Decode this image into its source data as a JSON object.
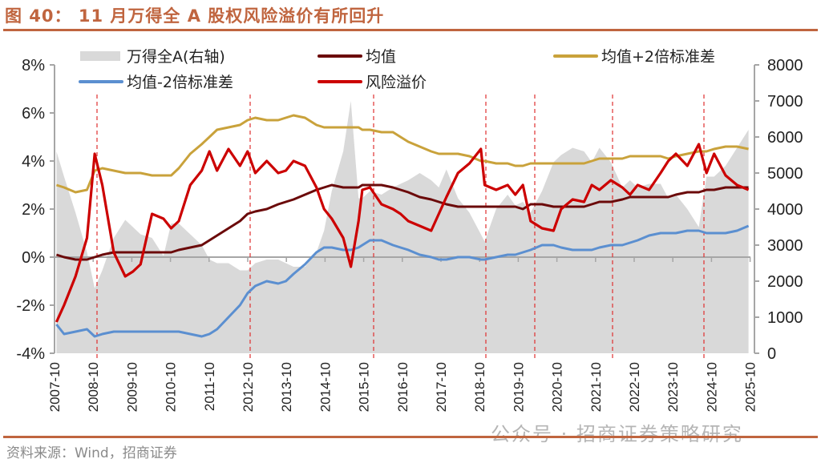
{
  "header": {
    "title": "图 40： 11 月万得全 A 股权风险溢价有所回升"
  },
  "footer": {
    "source": "资料来源：Wind，招商证券",
    "watermark": "公众号 · 招商证券策略研究"
  },
  "colors": {
    "title": "#c0653f",
    "index_area": "#d9d9d9",
    "mean": "#6b0a0a",
    "upper": "#c9a23b",
    "lower": "#5b8fd0",
    "erp": "#cc0000",
    "event_lines": "#e03030",
    "axis": "#a6a6a6"
  },
  "chart_data": {
    "type": "line",
    "title": "11月万得全A股权风险溢价有所回升",
    "xlabel": "",
    "ylabel": "",
    "ylim": [
      -0.04,
      0.08
    ],
    "y2lim": [
      0,
      8000
    ],
    "y_ticks": [
      "8%",
      "6%",
      "4%",
      "2%",
      "0%",
      "-2%",
      "-4%"
    ],
    "y2_ticks": [
      "8000",
      "7000",
      "6000",
      "5000",
      "4000",
      "3000",
      "2000",
      "1000",
      "0"
    ],
    "x_ticks": [
      "2007-10",
      "2008-10",
      "2009-10",
      "2010-10",
      "2011-10",
      "2012-10",
      "2013-10",
      "2014-10",
      "2015-10",
      "2016-10",
      "2017-10",
      "2018-10",
      "2019-10",
      "2020-10",
      "2021-10",
      "2022-10",
      "2023-10",
      "2024-10",
      "2025-10"
    ],
    "legend": [
      {
        "name": "万得全A(右轴)",
        "kind": "area"
      },
      {
        "name": "均值",
        "kind": "line"
      },
      {
        "name": "均值+2倍标准差",
        "kind": "line"
      },
      {
        "name": "均值-2倍标准差",
        "kind": "line"
      },
      {
        "name": "风险溢价",
        "kind": "line"
      }
    ],
    "legend_position": "top",
    "grid": false,
    "event_lines": [
      "2008-11",
      "2012-11",
      "2016-01",
      "2018-12",
      "2020-03",
      "2022-04",
      "2024-09"
    ],
    "x": [
      2007.8,
      2008.0,
      2008.3,
      2008.6,
      2008.8,
      2009.0,
      2009.3,
      2009.6,
      2009.8,
      2010.0,
      2010.3,
      2010.6,
      2010.8,
      2011.0,
      2011.3,
      2011.6,
      2011.8,
      2012.0,
      2012.3,
      2012.6,
      2012.8,
      2013.0,
      2013.3,
      2013.6,
      2013.8,
      2014.0,
      2014.3,
      2014.6,
      2014.8,
      2015.0,
      2015.3,
      2015.5,
      2015.7,
      2015.8,
      2016.0,
      2016.3,
      2016.6,
      2016.8,
      2017.0,
      2017.3,
      2017.6,
      2017.8,
      2018.0,
      2018.3,
      2018.6,
      2018.9,
      2019.0,
      2019.3,
      2019.6,
      2019.8,
      2020.0,
      2020.2,
      2020.5,
      2020.8,
      2021.0,
      2021.3,
      2021.6,
      2021.8,
      2022.0,
      2022.3,
      2022.6,
      2022.8,
      2023.0,
      2023.3,
      2023.6,
      2023.8,
      2024.0,
      2024.3,
      2024.6,
      2024.8,
      2025.0,
      2025.3,
      2025.6,
      2025.9
    ],
    "series": [
      {
        "name": "风险溢价",
        "axis": "left",
        "values": [
          -2.7,
          -2.0,
          -0.8,
          0.8,
          4.3,
          3.0,
          0.2,
          -0.8,
          -0.6,
          -0.3,
          1.8,
          1.6,
          1.2,
          1.5,
          3.0,
          3.6,
          4.4,
          3.6,
          4.5,
          3.8,
          4.4,
          3.5,
          4.0,
          3.5,
          3.6,
          4.0,
          3.8,
          2.9,
          2.0,
          1.6,
          0.8,
          -0.4,
          1.5,
          2.8,
          2.9,
          2.2,
          2.0,
          1.8,
          1.5,
          1.3,
          1.1,
          1.8,
          2.5,
          3.5,
          3.9,
          4.5,
          3.0,
          2.8,
          3.0,
          2.6,
          3.0,
          1.5,
          1.2,
          1.1,
          2.0,
          2.4,
          2.3,
          3.0,
          2.8,
          3.2,
          2.9,
          2.6,
          3.0,
          2.8,
          3.5,
          4.0,
          4.3,
          3.8,
          4.7,
          3.5,
          4.3,
          3.4,
          3.0,
          2.8
        ]
      },
      {
        "name": "均值",
        "axis": "left",
        "values": [
          0.1,
          0.0,
          -0.1,
          -0.1,
          0.0,
          0.1,
          0.2,
          0.2,
          0.2,
          0.2,
          0.2,
          0.2,
          0.2,
          0.3,
          0.4,
          0.5,
          0.7,
          0.9,
          1.2,
          1.5,
          1.8,
          1.9,
          2.0,
          2.2,
          2.3,
          2.4,
          2.6,
          2.8,
          2.9,
          3.0,
          2.9,
          2.9,
          2.9,
          3.0,
          3.0,
          3.0,
          2.9,
          2.8,
          2.7,
          2.5,
          2.4,
          2.3,
          2.2,
          2.1,
          2.1,
          2.1,
          2.1,
          2.1,
          2.1,
          2.1,
          2.0,
          2.2,
          2.2,
          2.1,
          2.1,
          2.1,
          2.1,
          2.2,
          2.3,
          2.3,
          2.4,
          2.5,
          2.5,
          2.5,
          2.5,
          2.5,
          2.6,
          2.7,
          2.7,
          2.8,
          2.8,
          2.9,
          2.9,
          2.9
        ]
      },
      {
        "name": "均值+2倍标准差",
        "axis": "left",
        "values": [
          3.0,
          2.9,
          2.7,
          2.8,
          3.6,
          3.7,
          3.6,
          3.5,
          3.5,
          3.5,
          3.4,
          3.4,
          3.4,
          3.7,
          4.3,
          4.7,
          5.0,
          5.3,
          5.4,
          5.5,
          5.7,
          5.8,
          5.7,
          5.7,
          5.8,
          5.9,
          5.8,
          5.5,
          5.4,
          5.4,
          5.4,
          5.4,
          5.4,
          5.3,
          5.3,
          5.2,
          5.2,
          5.0,
          4.8,
          4.6,
          4.4,
          4.3,
          4.3,
          4.3,
          4.2,
          4.0,
          4.0,
          3.9,
          3.9,
          3.8,
          3.8,
          3.9,
          3.9,
          3.9,
          3.9,
          3.9,
          3.9,
          4.0,
          4.1,
          4.1,
          4.1,
          4.2,
          4.2,
          4.2,
          4.2,
          4.1,
          4.2,
          4.3,
          4.4,
          4.4,
          4.5,
          4.6,
          4.6,
          4.5
        ]
      },
      {
        "name": "均值-2倍标准差",
        "axis": "left",
        "values": [
          -2.8,
          -3.2,
          -3.1,
          -3.0,
          -3.3,
          -3.2,
          -3.1,
          -3.1,
          -3.1,
          -3.1,
          -3.1,
          -3.1,
          -3.1,
          -3.1,
          -3.2,
          -3.3,
          -3.2,
          -3.0,
          -2.5,
          -2.0,
          -1.5,
          -1.2,
          -1.0,
          -1.1,
          -1.0,
          -0.7,
          -0.3,
          0.2,
          0.4,
          0.4,
          0.3,
          0.3,
          0.4,
          0.5,
          0.7,
          0.7,
          0.5,
          0.4,
          0.3,
          0.1,
          0.0,
          -0.1,
          -0.1,
          0.0,
          0.0,
          -0.1,
          -0.1,
          0.0,
          0.1,
          0.1,
          0.2,
          0.3,
          0.5,
          0.5,
          0.4,
          0.3,
          0.3,
          0.3,
          0.4,
          0.5,
          0.5,
          0.6,
          0.7,
          0.9,
          1.0,
          1.0,
          1.0,
          1.1,
          1.1,
          1.0,
          1.0,
          1.0,
          1.1,
          1.3
        ]
      },
      {
        "name": "万得全A(右轴)",
        "axis": "right",
        "values": [
          5600,
          4900,
          3900,
          2800,
          1800,
          2300,
          3200,
          3700,
          3500,
          3300,
          3200,
          2700,
          3600,
          3600,
          3300,
          3000,
          2600,
          2500,
          2500,
          2300,
          2300,
          2500,
          2600,
          2600,
          2500,
          2400,
          2400,
          2800,
          3400,
          4500,
          5600,
          7000,
          4300,
          4300,
          4500,
          4400,
          4600,
          4700,
          4800,
          5000,
          4800,
          4600,
          5100,
          4300,
          3900,
          3300,
          3100,
          4000,
          4400,
          4100,
          4200,
          3900,
          4500,
          5300,
          5500,
          5700,
          5600,
          5300,
          5700,
          5300,
          4600,
          4800,
          4600,
          4700,
          4700,
          4300,
          4400,
          4000,
          3500,
          4900,
          4900,
          5200,
          5700,
          6200
        ]
      }
    ]
  }
}
